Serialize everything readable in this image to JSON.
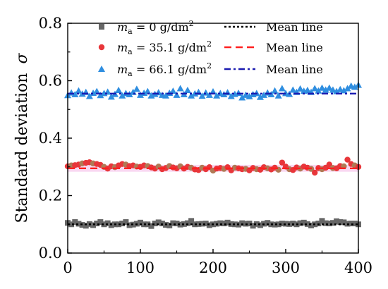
{
  "chart_data": {
    "type": "scatter",
    "title": "",
    "xlabel": "",
    "ylabel": "Standard deviation",
    "ylabel_symbol": "σ",
    "xlim": [
      0,
      400
    ],
    "ylim": [
      0.0,
      0.8
    ],
    "x_ticks": [
      0,
      100,
      200,
      300,
      400
    ],
    "y_ticks": [
      0.0,
      0.2,
      0.4,
      0.6,
      0.8
    ],
    "x_tick_labels": [
      "0",
      "100",
      "200",
      "300",
      "400"
    ],
    "y_tick_labels": [
      "0.0",
      "0.2",
      "0.4",
      "0.6",
      "0.8"
    ],
    "grid": false,
    "legend_position": "top-right",
    "series": [
      {
        "name": "m_a = 0 g/dm²",
        "label_var": "m",
        "label_sub": "a",
        "label_eq": " = 0 g/dm",
        "label_sup": "2",
        "marker": "square",
        "color": "#666666",
        "mean_value": 0.1,
        "mean_label": "Mean line",
        "mean_color": "#000000",
        "mean_dash": "dot",
        "x": [
          0,
          5,
          10,
          15,
          20,
          25,
          30,
          35,
          40,
          45,
          50,
          55,
          60,
          65,
          70,
          75,
          80,
          85,
          90,
          95,
          100,
          105,
          110,
          115,
          120,
          125,
          130,
          135,
          140,
          145,
          150,
          155,
          160,
          165,
          170,
          175,
          180,
          185,
          190,
          195,
          200,
          205,
          210,
          215,
          220,
          225,
          230,
          235,
          240,
          245,
          250,
          255,
          260,
          265,
          270,
          275,
          280,
          285,
          290,
          295,
          300,
          305,
          310,
          315,
          320,
          325,
          330,
          335,
          340,
          345,
          350,
          355,
          360,
          365,
          370,
          375,
          380,
          385,
          390,
          395,
          400
        ],
        "values": [
          0.105,
          0.1,
          0.108,
          0.102,
          0.098,
          0.095,
          0.101,
          0.097,
          0.103,
          0.108,
          0.1,
          0.104,
          0.097,
          0.1,
          0.1,
          0.103,
          0.108,
          0.097,
          0.099,
          0.102,
          0.106,
          0.1,
          0.1,
          0.094,
          0.103,
          0.107,
          0.103,
          0.098,
          0.096,
          0.104,
          0.103,
          0.099,
          0.101,
          0.104,
          0.112,
          0.1,
          0.101,
          0.102,
          0.103,
          0.097,
          0.1,
          0.102,
          0.104,
          0.103,
          0.106,
          0.101,
          0.1,
          0.099,
          0.104,
          0.102,
          0.103,
          0.095,
          0.101,
          0.097,
          0.102,
          0.105,
          0.1,
          0.099,
          0.1,
          0.103,
          0.102,
          0.101,
          0.103,
          0.1,
          0.104,
          0.106,
          0.101,
          0.096,
          0.1,
          0.103,
          0.112,
          0.104,
          0.103,
          0.105,
          0.111,
          0.108,
          0.107,
          0.102,
          0.103,
          0.103,
          0.1
        ]
      },
      {
        "name": "m_a = 35.1 g/dm²",
        "label_var": "m",
        "label_sub": "a",
        "label_eq": " = 35.1 g/dm",
        "label_sup": "2",
        "marker": "circle",
        "color": "#e8363a",
        "mean_value": 0.295,
        "mean_label": "Mean line",
        "mean_color": "#ff2020",
        "mean_dash": "dash",
        "x": [
          0,
          5,
          10,
          15,
          20,
          25,
          30,
          35,
          40,
          45,
          50,
          55,
          60,
          65,
          70,
          75,
          80,
          85,
          90,
          95,
          100,
          105,
          110,
          115,
          120,
          125,
          130,
          135,
          140,
          145,
          150,
          155,
          160,
          165,
          170,
          175,
          180,
          185,
          190,
          195,
          200,
          205,
          210,
          215,
          220,
          225,
          230,
          235,
          240,
          245,
          250,
          255,
          260,
          265,
          270,
          275,
          280,
          285,
          290,
          295,
          300,
          305,
          310,
          315,
          320,
          325,
          330,
          335,
          340,
          345,
          350,
          355,
          360,
          365,
          370,
          375,
          380,
          385,
          390,
          395,
          400
        ],
        "values": [
          0.302,
          0.305,
          0.306,
          0.308,
          0.312,
          0.314,
          0.316,
          0.312,
          0.31,
          0.307,
          0.3,
          0.294,
          0.302,
          0.299,
          0.305,
          0.31,
          0.308,
          0.303,
          0.305,
          0.301,
          0.3,
          0.305,
          0.303,
          0.298,
          0.294,
          0.301,
          0.292,
          0.296,
          0.303,
          0.298,
          0.295,
          0.302,
          0.294,
          0.3,
          0.297,
          0.291,
          0.289,
          0.297,
          0.292,
          0.299,
          0.287,
          0.294,
          0.296,
          0.293,
          0.299,
          0.288,
          0.297,
          0.295,
          0.292,
          0.293,
          0.288,
          0.296,
          0.292,
          0.29,
          0.299,
          0.295,
          0.291,
          0.297,
          0.29,
          0.315,
          0.301,
          0.292,
          0.289,
          0.298,
          0.294,
          0.301,
          0.297,
          0.293,
          0.28,
          0.296,
          0.292,
          0.297,
          0.308,
          0.296,
          0.295,
          0.303,
          0.302,
          0.325,
          0.31,
          0.305,
          0.3
        ]
      },
      {
        "name": "m_a = 66.1 g/dm²",
        "label_var": "m",
        "label_sub": "a",
        "label_eq": " = 66.1 g/dm",
        "label_sup": "2",
        "marker": "triangle",
        "color": "#2f8ee0",
        "mean_value": 0.555,
        "mean_label": "Mean line",
        "mean_color": "#1a1ab0",
        "mean_dash": "dashdot",
        "x": [
          0,
          5,
          10,
          15,
          20,
          25,
          30,
          35,
          40,
          45,
          50,
          55,
          60,
          65,
          70,
          75,
          80,
          85,
          90,
          95,
          100,
          105,
          110,
          115,
          120,
          125,
          130,
          135,
          140,
          145,
          150,
          155,
          160,
          165,
          170,
          175,
          180,
          185,
          190,
          195,
          200,
          205,
          210,
          215,
          220,
          225,
          230,
          235,
          240,
          245,
          250,
          255,
          260,
          265,
          270,
          275,
          280,
          285,
          290,
          295,
          300,
          305,
          310,
          315,
          320,
          325,
          330,
          335,
          340,
          345,
          350,
          355,
          360,
          365,
          370,
          375,
          380,
          385,
          390,
          395,
          400
        ],
        "values": [
          0.549,
          0.558,
          0.552,
          0.565,
          0.554,
          0.56,
          0.546,
          0.557,
          0.563,
          0.549,
          0.556,
          0.561,
          0.544,
          0.553,
          0.567,
          0.548,
          0.556,
          0.552,
          0.56,
          0.571,
          0.55,
          0.557,
          0.563,
          0.548,
          0.553,
          0.559,
          0.55,
          0.548,
          0.557,
          0.564,
          0.55,
          0.573,
          0.552,
          0.567,
          0.548,
          0.555,
          0.56,
          0.547,
          0.558,
          0.55,
          0.562,
          0.548,
          0.556,
          0.552,
          0.559,
          0.546,
          0.553,
          0.557,
          0.541,
          0.55,
          0.545,
          0.552,
          0.556,
          0.543,
          0.55,
          0.558,
          0.552,
          0.565,
          0.548,
          0.573,
          0.556,
          0.553,
          0.568,
          0.56,
          0.572,
          0.564,
          0.567,
          0.56,
          0.573,
          0.565,
          0.575,
          0.568,
          0.575,
          0.568,
          0.563,
          0.57,
          0.566,
          0.573,
          0.582,
          0.578,
          0.585
        ]
      }
    ]
  }
}
